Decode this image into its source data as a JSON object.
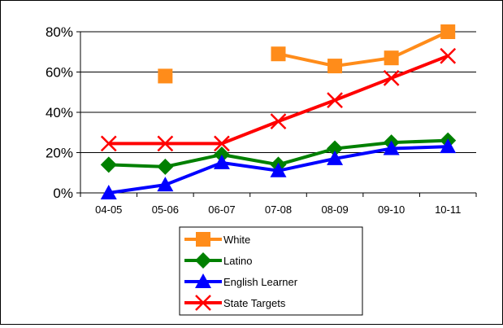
{
  "chart_data": {
    "type": "line",
    "title": "",
    "xlabel": "",
    "ylabel": "",
    "categories": [
      "04-05",
      "05-06",
      "06-07",
      "07-08",
      "08-09",
      "09-10",
      "10-11"
    ],
    "ylim": [
      0,
      0.8
    ],
    "yticks": [
      0,
      0.2,
      0.4,
      0.6,
      0.8
    ],
    "ytick_labels": [
      "0%",
      "20%",
      "40%",
      "60%",
      "80%"
    ],
    "grid": "horizontal",
    "legend_position": "bottom-center",
    "series": [
      {
        "name": "White",
        "values": [
          null,
          0.58,
          null,
          0.69,
          0.63,
          0.67,
          0.8
        ],
        "color": "#ff8c1a",
        "marker": "square"
      },
      {
        "name": "Latino",
        "values": [
          0.14,
          0.13,
          0.19,
          0.14,
          0.22,
          0.25,
          0.26
        ],
        "color": "#008000",
        "marker": "diamond"
      },
      {
        "name": "English Learner",
        "values": [
          0.0,
          0.04,
          0.15,
          0.11,
          0.17,
          0.22,
          0.23
        ],
        "color": "#0000ff",
        "marker": "triangle"
      },
      {
        "name": "State Targets",
        "values": [
          0.245,
          0.245,
          0.245,
          0.355,
          0.46,
          0.57,
          0.68
        ],
        "color": "#ff0000",
        "marker": "x"
      }
    ]
  }
}
